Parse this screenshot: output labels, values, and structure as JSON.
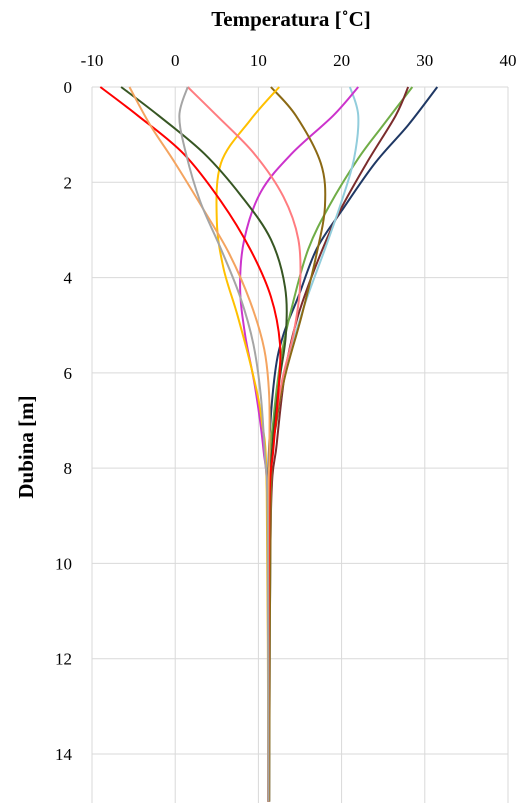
{
  "chart_data": {
    "type": "line",
    "title": "Temperatura [˚C]",
    "xlabel": "Temperatura [˚C]",
    "ylabel": "Dubina [m]",
    "x_axis_position": "top",
    "y_axis_inverted": true,
    "xlim": [
      -10,
      40
    ],
    "ylim": [
      0,
      15
    ],
    "x_ticks": [
      "-10",
      "0",
      "10",
      "20",
      "30",
      "40"
    ],
    "y_ticks": [
      "0",
      "2",
      "4",
      "6",
      "8",
      "10",
      "12",
      "14"
    ],
    "grid": true,
    "series": [
      {
        "color": "#1f3864",
        "points": [
          [
            31.5,
            0
          ],
          [
            28,
            0.8
          ],
          [
            24,
            1.6
          ],
          [
            20,
            2.6
          ],
          [
            17,
            3.4
          ],
          [
            14.8,
            4.4
          ],
          [
            13,
            5.2
          ],
          [
            12,
            6
          ],
          [
            11.3,
            7.5
          ],
          [
            11.2,
            9
          ],
          [
            11.2,
            15
          ]
        ]
      },
      {
        "color": "#70ad47",
        "points": [
          [
            28.5,
            0
          ],
          [
            25,
            0.8
          ],
          [
            22,
            1.5
          ],
          [
            18.5,
            2.5
          ],
          [
            16,
            3.4
          ],
          [
            14.2,
            4.5
          ],
          [
            12.8,
            5.6
          ],
          [
            11.8,
            7
          ],
          [
            11.3,
            8.5
          ],
          [
            11.2,
            15
          ]
        ]
      },
      {
        "color": "#7b2c2c",
        "points": [
          [
            28,
            0
          ],
          [
            26.5,
            0.6
          ],
          [
            23,
            1.6
          ],
          [
            19.5,
            2.7
          ],
          [
            16.8,
            3.8
          ],
          [
            14.6,
            4.9
          ],
          [
            13.2,
            6
          ],
          [
            12.2,
            7.5
          ],
          [
            11.5,
            9
          ],
          [
            11.3,
            15
          ]
        ]
      },
      {
        "color": "#92cddc",
        "points": [
          [
            21,
            0
          ],
          [
            22,
            0.6
          ],
          [
            21.5,
            1.5
          ],
          [
            20,
            2.4
          ],
          [
            18,
            3.4
          ],
          [
            15.5,
            4.6
          ],
          [
            13.5,
            5.8
          ],
          [
            12.2,
            7
          ],
          [
            11.5,
            8.5
          ],
          [
            11.3,
            15
          ]
        ]
      },
      {
        "color": "#cc33cc",
        "points": [
          [
            22,
            0
          ],
          [
            19,
            0.6
          ],
          [
            14,
            1.4
          ],
          [
            10.3,
            2.2
          ],
          [
            8.3,
            3.2
          ],
          [
            7.8,
            4.2
          ],
          [
            8.4,
            5.2
          ],
          [
            9.6,
            6.3
          ],
          [
            10.6,
            7.6
          ],
          [
            11.1,
            9
          ],
          [
            11.2,
            15
          ]
        ]
      },
      {
        "color": "#8b6914",
        "points": [
          [
            11.5,
            0
          ],
          [
            14.5,
            0.6
          ],
          [
            17.5,
            1.6
          ],
          [
            18,
            2.5
          ],
          [
            17,
            3.5
          ],
          [
            15.2,
            4.8
          ],
          [
            13.3,
            6
          ],
          [
            12.2,
            7
          ],
          [
            11.5,
            8.5
          ],
          [
            11.3,
            15
          ]
        ]
      },
      {
        "color": "#ffc000",
        "points": [
          [
            12.5,
            0
          ],
          [
            9,
            0.7
          ],
          [
            5.5,
            1.6
          ],
          [
            5,
            2.8
          ],
          [
            5.8,
            3.8
          ],
          [
            7.5,
            4.8
          ],
          [
            9.3,
            6
          ],
          [
            10.4,
            7
          ],
          [
            11,
            8.5
          ],
          [
            11.2,
            15
          ]
        ]
      },
      {
        "color": "#ff7c80",
        "points": [
          [
            1.5,
            0
          ],
          [
            5,
            0.6
          ],
          [
            9.5,
            1.4
          ],
          [
            13,
            2.3
          ],
          [
            14.8,
            3.2
          ],
          [
            15,
            4.2
          ],
          [
            14.2,
            5.2
          ],
          [
            12.8,
            6.2
          ],
          [
            11.7,
            7.5
          ],
          [
            11.3,
            9
          ],
          [
            11.2,
            15
          ]
        ]
      },
      {
        "color": "#375623",
        "points": [
          [
            -6.5,
            0
          ],
          [
            -2,
            0.6
          ],
          [
            3.5,
            1.4
          ],
          [
            8,
            2.3
          ],
          [
            11.5,
            3.2
          ],
          [
            13.2,
            4.2
          ],
          [
            13.3,
            5.2
          ],
          [
            12.5,
            6.2
          ],
          [
            11.7,
            7.5
          ],
          [
            11.3,
            9
          ],
          [
            11.2,
            15
          ]
        ]
      },
      {
        "color": "#ff0000",
        "points": [
          [
            -9,
            0
          ],
          [
            -4.5,
            0.6
          ],
          [
            1,
            1.4
          ],
          [
            5.5,
            2.4
          ],
          [
            9,
            3.4
          ],
          [
            11.5,
            4.4
          ],
          [
            12.6,
            5.4
          ],
          [
            12.4,
            6.4
          ],
          [
            11.8,
            7.6
          ],
          [
            11.3,
            9
          ],
          [
            11.2,
            15
          ]
        ]
      },
      {
        "color": "#f4a460",
        "points": [
          [
            -5.5,
            0
          ],
          [
            -3,
            0.8
          ],
          [
            0,
            1.6
          ],
          [
            3.5,
            2.6
          ],
          [
            6.5,
            3.5
          ],
          [
            9,
            4.5
          ],
          [
            10.7,
            5.5
          ],
          [
            11.3,
            6.5
          ],
          [
            11.3,
            7.8
          ],
          [
            11.2,
            9
          ],
          [
            11.2,
            15
          ]
        ]
      },
      {
        "color": "#a5a5a5",
        "points": [
          [
            1.5,
            0
          ],
          [
            0.5,
            0.6
          ],
          [
            1.3,
            1.4
          ],
          [
            3,
            2.4
          ],
          [
            5.5,
            3.4
          ],
          [
            7.8,
            4.4
          ],
          [
            9.4,
            5.4
          ],
          [
            10.3,
            6.5
          ],
          [
            10.8,
            7.8
          ],
          [
            11.1,
            9
          ],
          [
            11.2,
            15
          ]
        ]
      }
    ]
  }
}
